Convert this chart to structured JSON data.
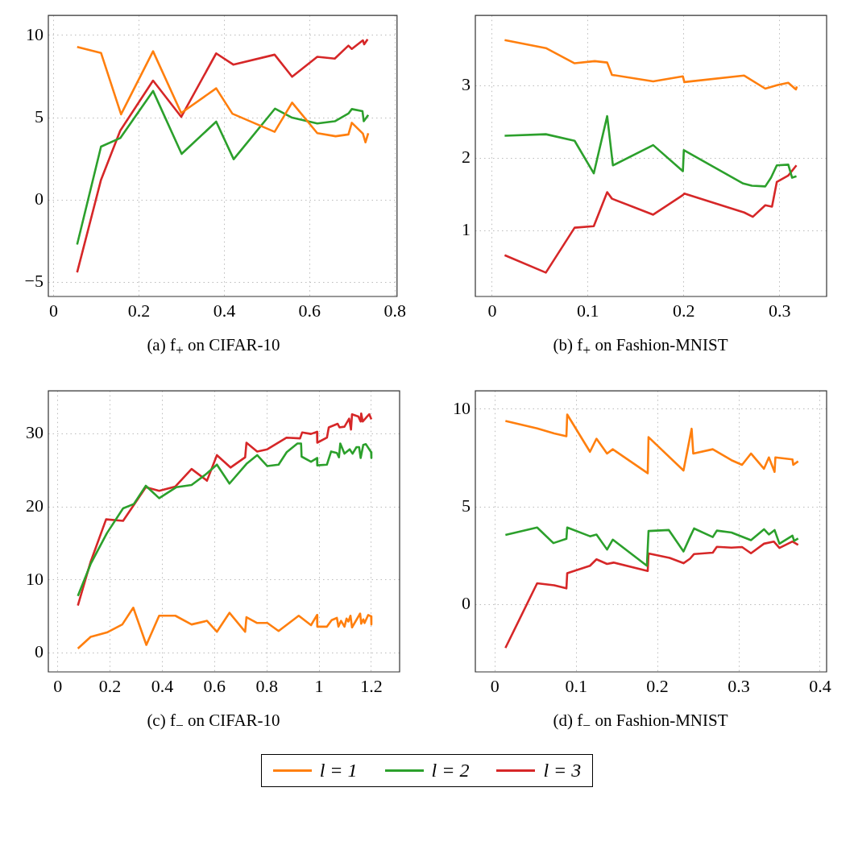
{
  "chart_data": [
    {
      "type": "line",
      "title": "(a) f$_{+}$ on CIFAR-10",
      "xlim": [
        -0.0125,
        0.805
      ],
      "ylim": [
        -5.85,
        11.2
      ],
      "xticks": [
        0,
        0.2,
        0.4,
        0.6,
        0.8
      ],
      "yticks": [
        {
          "value": -5,
          "label": "−5"
        },
        0,
        5,
        10
      ],
      "grid": true,
      "legend": "bottom",
      "series": [
        {
          "name": "l = 1",
          "color": "#ff7f0e",
          "x": [
            0.055,
            0.111,
            0.158,
            0.233,
            0.299,
            0.381,
            0.419,
            0.518,
            0.559,
            0.618,
            0.661,
            0.691,
            0.699,
            0.725,
            0.731,
            0.7375
          ],
          "values": [
            9.29,
            8.93,
            5.2,
            9.03,
            5.28,
            6.78,
            5.24,
            4.14,
            5.91,
            4.06,
            3.87,
            3.98,
            4.69,
            4.03,
            3.5,
            4.06
          ]
        },
        {
          "name": "l = 2",
          "color": "#2ca02c",
          "x": [
            0.055,
            0.111,
            0.156,
            0.233,
            0.3,
            0.381,
            0.422,
            0.519,
            0.559,
            0.618,
            0.659,
            0.691,
            0.699,
            0.724,
            0.727,
            0.7375
          ],
          "values": [
            -2.7,
            3.24,
            3.76,
            6.62,
            2.8,
            4.76,
            2.48,
            5.55,
            5.0,
            4.65,
            4.78,
            5.25,
            5.52,
            5.39,
            4.78,
            5.16
          ]
        },
        {
          "name": "l = 3",
          "color": "#d62728",
          "x": [
            0.055,
            0.111,
            0.156,
            0.233,
            0.299,
            0.381,
            0.421,
            0.518,
            0.559,
            0.618,
            0.659,
            0.691,
            0.699,
            0.725,
            0.728,
            0.736
          ],
          "values": [
            -4.39,
            1.23,
            4.21,
            7.25,
            5.05,
            8.9,
            8.22,
            8.82,
            7.48,
            8.69,
            8.58,
            9.37,
            9.17,
            9.69,
            9.45,
            9.76
          ]
        }
      ]
    },
    {
      "type": "line",
      "title": "(b) f$_{+}$ on Fashion-MNIST",
      "xlim": [
        -0.0176,
        0.349
      ],
      "ylim": [
        0.09,
        3.97
      ],
      "xticks": [
        0,
        0.1,
        0.2,
        0.3
      ],
      "yticks": [
        1,
        2,
        3
      ],
      "grid": true,
      "legend": "bottom",
      "series": [
        {
          "name": "l = 1",
          "color": "#ff7f0e",
          "x": [
            0.013,
            0.056,
            0.086,
            0.107,
            0.12,
            0.125,
            0.168,
            0.199,
            0.2005,
            0.263,
            0.285,
            0.298,
            0.309,
            0.315,
            0.317,
            0.318
          ],
          "values": [
            3.63,
            3.52,
            3.31,
            3.34,
            3.32,
            3.15,
            3.06,
            3.13,
            3.05,
            3.14,
            2.96,
            3.01,
            3.04,
            2.97,
            2.95,
            2.99
          ]
        },
        {
          "name": "l = 2",
          "color": "#2ca02c",
          "x": [
            0.013,
            0.056,
            0.086,
            0.106,
            0.12,
            0.126,
            0.168,
            0.199,
            0.2,
            0.262,
            0.271,
            0.285,
            0.291,
            0.297,
            0.309,
            0.313,
            0.3175
          ],
          "values": [
            2.31,
            2.33,
            2.24,
            1.79,
            2.58,
            1.9,
            2.18,
            1.82,
            2.11,
            1.65,
            1.62,
            1.61,
            1.73,
            1.9,
            1.91,
            1.73,
            1.75
          ]
        },
        {
          "name": "l = 3",
          "color": "#d62728",
          "x": [
            0.013,
            0.056,
            0.086,
            0.106,
            0.12,
            0.125,
            0.168,
            0.199,
            0.2005,
            0.263,
            0.272,
            0.285,
            0.292,
            0.297,
            0.309,
            0.3175
          ],
          "values": [
            0.66,
            0.42,
            1.04,
            1.06,
            1.53,
            1.44,
            1.22,
            1.49,
            1.51,
            1.25,
            1.19,
            1.35,
            1.33,
            1.67,
            1.76,
            1.9
          ]
        }
      ]
    },
    {
      "type": "line",
      "title": "(c) f$_{−}$ on CIFAR-10",
      "xlim": [
        -0.036,
        1.308
      ],
      "ylim": [
        -2.6,
        35.9
      ],
      "xticks": [
        0,
        0.2,
        0.4,
        0.6,
        0.8,
        1,
        1.2
      ],
      "yticks": [
        0,
        10,
        20,
        30
      ],
      "grid": true,
      "legend": "bottom",
      "series": [
        {
          "name": "l = 1",
          "color": "#ff7f0e",
          "x": [
            0.077,
            0.126,
            0.188,
            0.247,
            0.289,
            0.339,
            0.388,
            0.45,
            0.512,
            0.571,
            0.609,
            0.657,
            0.717,
            0.722,
            0.763,
            0.802,
            0.845,
            0.922,
            0.969,
            0.992,
            0.993,
            1.03,
            1.048,
            1.068,
            1.074,
            1.084,
            1.097,
            1.105,
            1.112,
            1.12,
            1.126,
            1.157,
            1.161,
            1.169,
            1.174,
            1.188,
            1.199,
            1.2
          ],
          "values": [
            0.6,
            2.2,
            2.8,
            3.9,
            6.2,
            1.1,
            5.1,
            5.1,
            3.9,
            4.4,
            2.9,
            5.5,
            2.9,
            4.9,
            4.1,
            4.1,
            3.0,
            5.1,
            3.8,
            5.2,
            3.6,
            3.6,
            4.5,
            4.8,
            3.6,
            4.4,
            3.6,
            4.7,
            4.3,
            5.1,
            3.5,
            5.4,
            4.0,
            4.6,
            4.1,
            5.2,
            5.0,
            3.9
          ]
        },
        {
          "name": "l = 2",
          "color": "#2ca02c",
          "x": [
            0.077,
            0.126,
            0.188,
            0.25,
            0.291,
            0.337,
            0.388,
            0.453,
            0.512,
            0.571,
            0.609,
            0.657,
            0.722,
            0.763,
            0.802,
            0.845,
            0.876,
            0.917,
            0.931,
            0.933,
            0.969,
            0.992,
            0.993,
            1.03,
            1.046,
            1.068,
            1.076,
            1.081,
            1.097,
            1.117,
            1.128,
            1.143,
            1.153,
            1.159,
            1.169,
            1.179,
            1.199,
            1.2
          ],
          "values": [
            7.8,
            12.2,
            16.4,
            19.8,
            20.4,
            22.9,
            21.2,
            22.7,
            23.0,
            24.6,
            25.8,
            23.2,
            25.9,
            27.1,
            25.6,
            25.8,
            27.5,
            28.7,
            28.7,
            26.9,
            26.2,
            26.7,
            25.7,
            25.8,
            27.6,
            27.4,
            26.8,
            28.7,
            27.3,
            27.9,
            27.3,
            28.2,
            28.2,
            26.7,
            28.5,
            28.6,
            27.5,
            26.7
          ]
        },
        {
          "name": "l = 3",
          "color": "#d62728",
          "x": [
            0.077,
            0.126,
            0.185,
            0.25,
            0.337,
            0.388,
            0.45,
            0.512,
            0.571,
            0.609,
            0.661,
            0.717,
            0.722,
            0.763,
            0.802,
            0.876,
            0.927,
            0.935,
            0.969,
            0.992,
            0.993,
            1.03,
            1.037,
            1.071,
            1.078,
            1.097,
            1.115,
            1.122,
            1.126,
            1.15,
            1.159,
            1.161,
            1.167,
            1.184,
            1.192,
            1.2
          ],
          "values": [
            6.5,
            12.5,
            18.3,
            18.1,
            22.7,
            22.2,
            22.8,
            25.2,
            23.6,
            27.1,
            25.4,
            26.8,
            28.8,
            27.6,
            27.9,
            29.5,
            29.4,
            30.2,
            30.0,
            30.3,
            28.8,
            29.5,
            30.9,
            31.4,
            30.9,
            31.0,
            32.1,
            30.6,
            32.7,
            32.4,
            31.7,
            32.8,
            31.7,
            32.4,
            32.7,
            32.0
          ]
        }
      ]
    },
    {
      "type": "line",
      "title": "(d) f$_{−}$ on Fashion-MNIST",
      "xlim": [
        -0.024,
        0.408
      ],
      "ylim": [
        -3.46,
        10.94
      ],
      "xticks": [
        0,
        0.1,
        0.2,
        0.3,
        0.4
      ],
      "yticks": [
        0,
        5,
        10
      ],
      "grid": true,
      "legend": "bottom",
      "series": [
        {
          "name": "l = 1",
          "color": "#ff7f0e",
          "x": [
            0.013,
            0.052,
            0.073,
            0.088,
            0.089,
            0.117,
            0.125,
            0.138,
            0.145,
            0.188,
            0.189,
            0.232,
            0.242,
            0.244,
            0.268,
            0.291,
            0.304,
            0.315,
            0.331,
            0.337,
            0.344,
            0.345,
            0.366,
            0.367,
            0.373
          ],
          "values": [
            9.4,
            9.02,
            8.76,
            8.62,
            9.73,
            7.82,
            8.49,
            7.73,
            7.95,
            6.72,
            8.57,
            6.86,
            9.0,
            7.73,
            7.95,
            7.39,
            7.15,
            7.73,
            6.95,
            7.53,
            6.79,
            7.53,
            7.43,
            7.15,
            7.33
          ]
        },
        {
          "name": "l = 2",
          "color": "#2ca02c",
          "x": [
            0.013,
            0.052,
            0.072,
            0.088,
            0.089,
            0.117,
            0.125,
            0.138,
            0.145,
            0.187,
            0.189,
            0.214,
            0.232,
            0.24,
            0.245,
            0.268,
            0.273,
            0.291,
            0.315,
            0.331,
            0.337,
            0.344,
            0.35,
            0.366,
            0.368,
            0.373
          ],
          "values": [
            3.56,
            3.94,
            3.14,
            3.36,
            3.94,
            3.49,
            3.58,
            2.81,
            3.32,
            1.98,
            3.76,
            3.81,
            2.71,
            3.45,
            3.89,
            3.45,
            3.78,
            3.68,
            3.29,
            3.85,
            3.58,
            3.81,
            3.11,
            3.52,
            3.25,
            3.38
          ]
        },
        {
          "name": "l = 3",
          "color": "#d62728",
          "x": [
            0.013,
            0.052,
            0.073,
            0.088,
            0.089,
            0.117,
            0.125,
            0.138,
            0.146,
            0.188,
            0.189,
            0.215,
            0.232,
            0.24,
            0.245,
            0.268,
            0.273,
            0.291,
            0.304,
            0.315,
            0.331,
            0.343,
            0.35,
            0.366,
            0.373
          ],
          "values": [
            -2.23,
            1.08,
            0.98,
            0.82,
            1.6,
            1.98,
            2.31,
            2.07,
            2.14,
            1.71,
            2.61,
            2.38,
            2.11,
            2.34,
            2.58,
            2.65,
            2.95,
            2.91,
            2.94,
            2.62,
            3.11,
            3.22,
            2.89,
            3.22,
            3.05
          ]
        }
      ]
    }
  ]
}
